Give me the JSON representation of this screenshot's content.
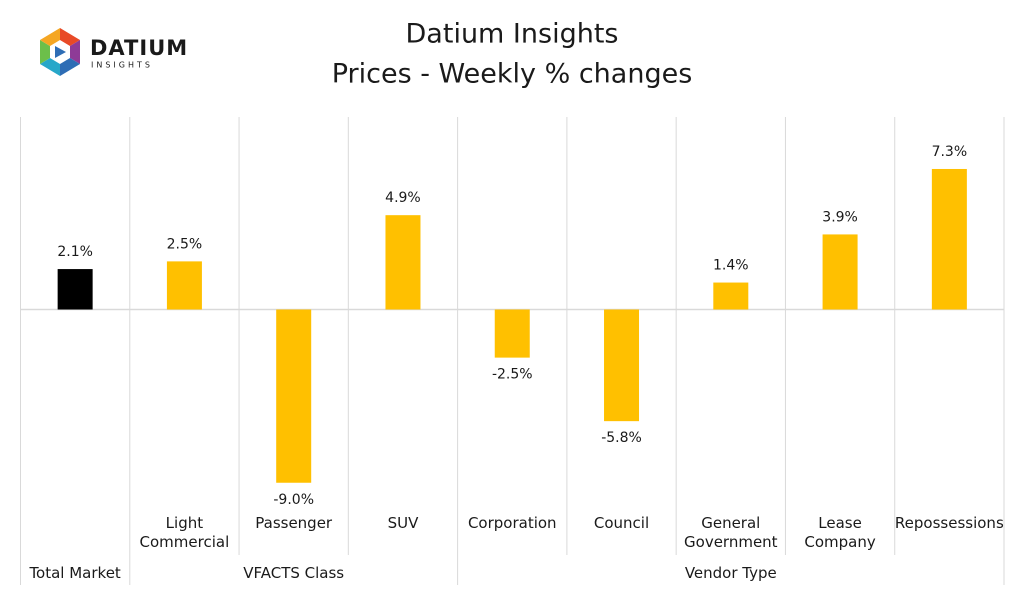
{
  "logo": {
    "name": "DATIUM",
    "tagline": "INSIGHTS"
  },
  "chart_data": {
    "type": "bar",
    "title": "Datium Insights",
    "subtitle": "Prices - Weekly % changes",
    "categories": [
      null,
      "Light Commercial",
      "Passenger",
      "SUV",
      "Corporation",
      "Council",
      "General Government",
      "Lease Company",
      "Repossessions"
    ],
    "groups": [
      {
        "name": "Total Market",
        "span": 1
      },
      {
        "name": "VFACTS Class",
        "span": 3
      },
      {
        "name": "Vendor Type",
        "span": 5
      }
    ],
    "values": [
      2.1,
      2.5,
      -9.0,
      4.9,
      -2.5,
      -5.8,
      1.4,
      3.9,
      7.3
    ],
    "value_labels": [
      "2.1%",
      "2.5%",
      "-9.0%",
      "4.9%",
      "-2.5%",
      "-5.8%",
      "1.4%",
      "3.9%",
      "7.3%"
    ],
    "colors": [
      "#000000",
      "#ffc000",
      "#ffc000",
      "#ffc000",
      "#ffc000",
      "#ffc000",
      "#ffc000",
      "#ffc000",
      "#ffc000"
    ],
    "ylim": [
      -10,
      10
    ]
  }
}
